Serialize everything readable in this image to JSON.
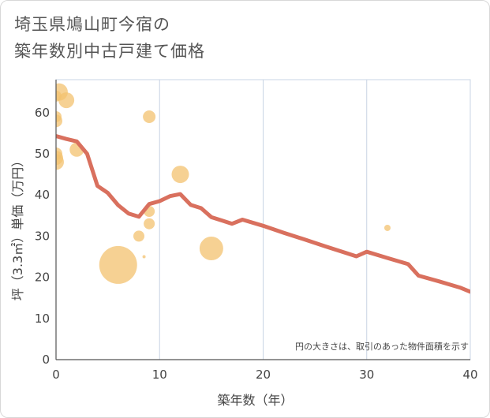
{
  "title": {
    "line1": "埼玉県鳩山町今宿の",
    "line2": "築年数別中古戸建て価格"
  },
  "chart_data": {
    "type": "scatter",
    "xlabel": "築年数（年）",
    "ylabel": "坪（3.3㎡）単価（万円）",
    "xlim": [
      0,
      40
    ],
    "ylim": [
      0,
      68
    ],
    "xticks": [
      0,
      10,
      20,
      30,
      40
    ],
    "yticks": [
      0,
      10,
      20,
      30,
      40,
      50,
      60
    ],
    "grid": true,
    "note": "円の大きさは、取引のあった物件面積を示す",
    "colors": {
      "bubble": "#f3c26f",
      "line": "#d9705e",
      "grid": "#c8d4e4"
    },
    "scatter": [
      {
        "x": 0,
        "y": 58,
        "size": 8
      },
      {
        "x": 0,
        "y": 59,
        "size": 7
      },
      {
        "x": 0,
        "y": 50,
        "size": 8
      },
      {
        "x": 0,
        "y": 49,
        "size": 9
      },
      {
        "x": 0,
        "y": 48,
        "size": 10
      },
      {
        "x": 0,
        "y": 64,
        "size": 7
      },
      {
        "x": 0.3,
        "y": 65,
        "size": 11
      },
      {
        "x": 1,
        "y": 63,
        "size": 10
      },
      {
        "x": 2,
        "y": 51,
        "size": 9
      },
      {
        "x": 6,
        "y": 23,
        "size": 24
      },
      {
        "x": 8,
        "y": 30,
        "size": 7
      },
      {
        "x": 8.5,
        "y": 25,
        "size": 2
      },
      {
        "x": 9,
        "y": 59,
        "size": 8
      },
      {
        "x": 9,
        "y": 36,
        "size": 7
      },
      {
        "x": 9,
        "y": 33,
        "size": 7
      },
      {
        "x": 12,
        "y": 45,
        "size": 11
      },
      {
        "x": 15,
        "y": 27,
        "size": 15
      },
      {
        "x": 32,
        "y": 32,
        "size": 4
      }
    ],
    "trend": {
      "x": [
        0,
        1,
        2,
        3,
        4,
        5,
        6,
        7,
        8,
        9,
        10,
        11,
        12,
        13,
        14,
        15,
        16,
        17,
        18,
        20,
        22,
        24,
        26,
        28,
        29,
        30,
        32,
        34,
        35,
        37,
        39,
        40
      ],
      "y": [
        54.3,
        53.6,
        53,
        50,
        42.2,
        40.5,
        37.5,
        35.5,
        34.7,
        37.8,
        38.5,
        39.7,
        40.2,
        37.6,
        36.8,
        34.6,
        33.8,
        33,
        34,
        32.5,
        30.8,
        29.2,
        27.5,
        25.9,
        25.1,
        26.2,
        24.7,
        23.2,
        20.4,
        19,
        17.5,
        16.5
      ]
    }
  }
}
